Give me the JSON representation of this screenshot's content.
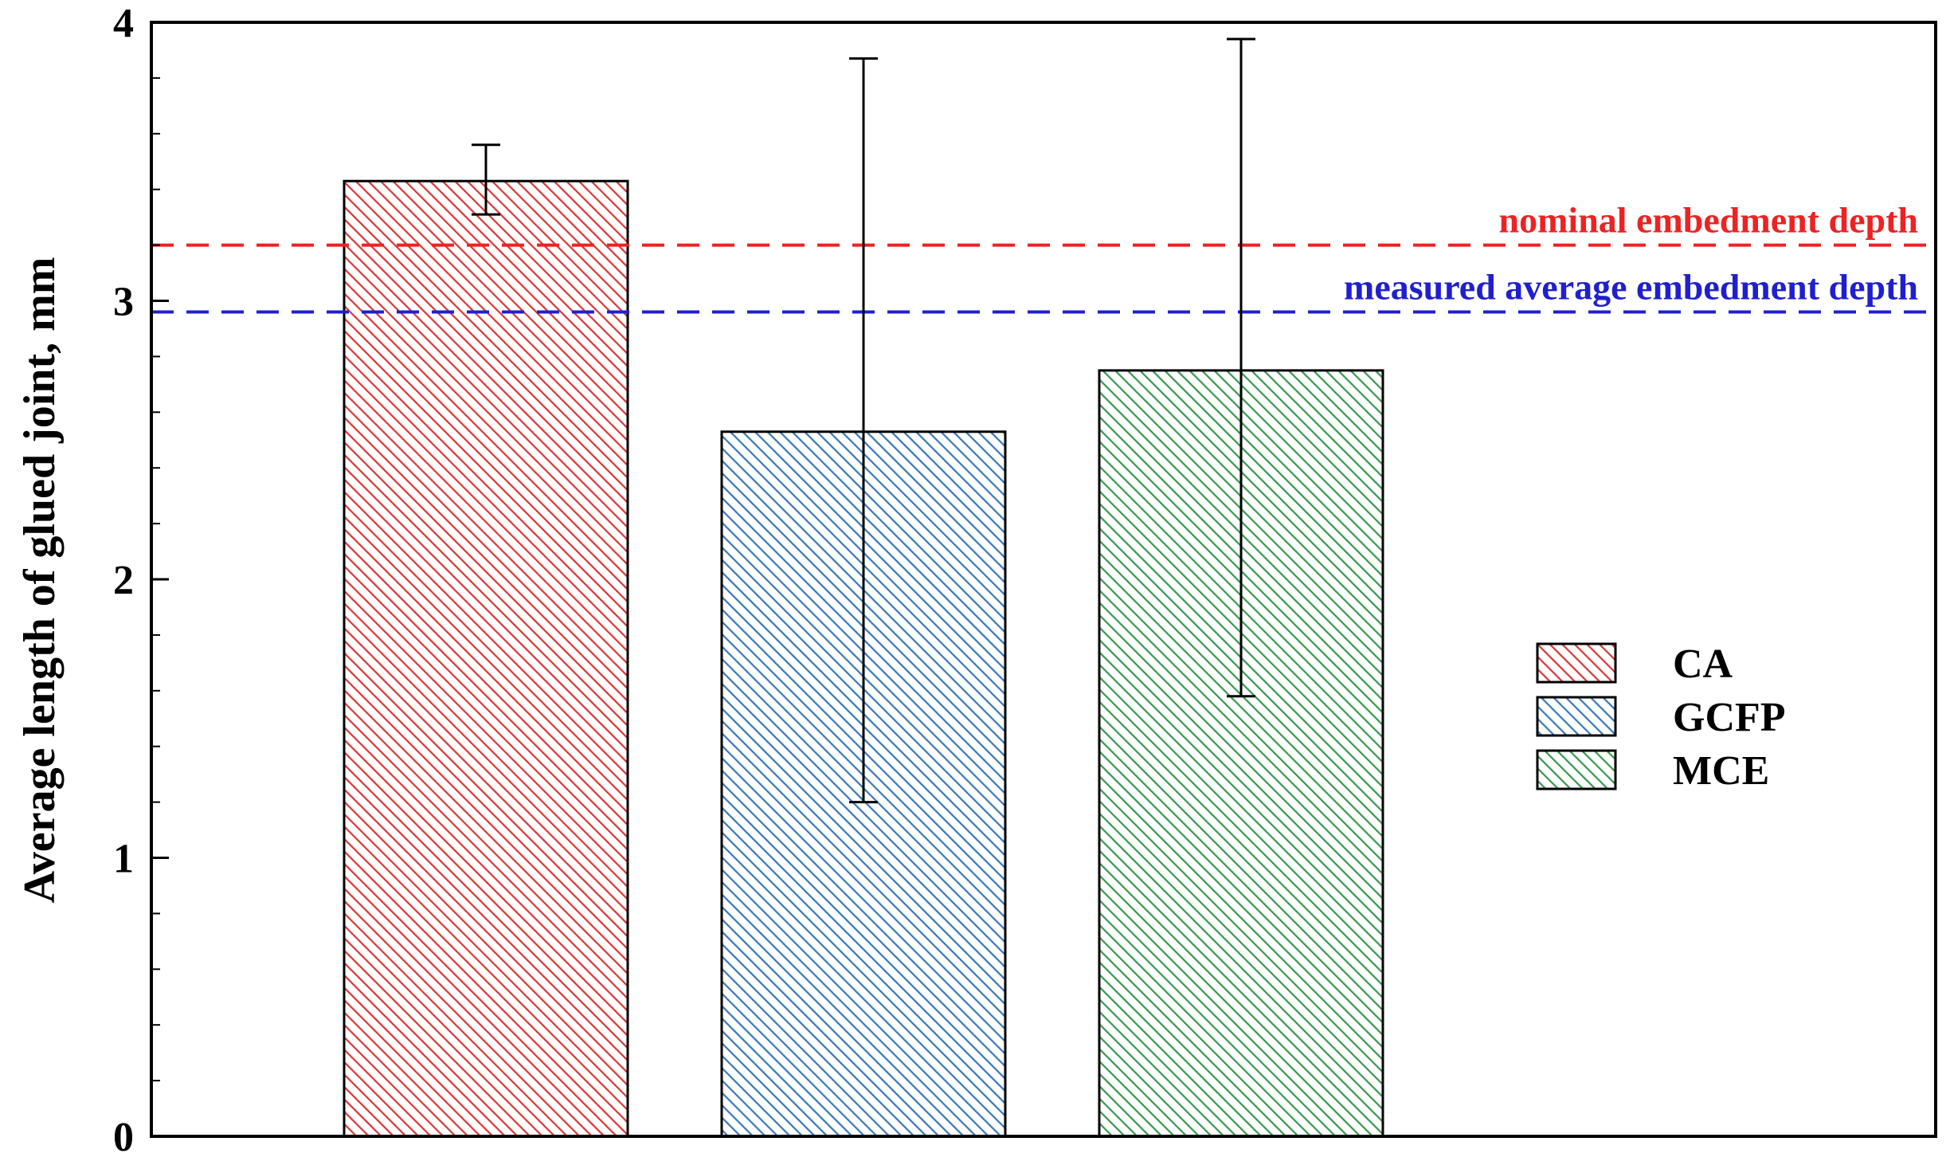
{
  "chart_data": {
    "type": "bar",
    "title": "",
    "xlabel": "",
    "ylabel": "Average length of glued joint, mm",
    "ylim": [
      0,
      4
    ],
    "yticks": [
      0,
      1,
      2,
      3,
      4
    ],
    "categories": [
      "CA",
      "GCFP",
      "MCE"
    ],
    "series": [
      {
        "values": [
          3.43,
          2.53,
          2.75
        ],
        "error_low": [
          3.31,
          1.2,
          1.58
        ],
        "error_high": [
          3.56,
          3.87,
          3.94
        ],
        "colors": [
          "#d93a3a",
          "#3a7bb8",
          "#3a9a50"
        ]
      }
    ],
    "reference_lines": [
      {
        "label": "nominal embedment depth",
        "value": 3.2,
        "color": "#ee2222"
      },
      {
        "label": "measured average embedment depth",
        "value": 2.96,
        "color": "#1f1fd0"
      }
    ],
    "legend": {
      "placement": "right",
      "entries": [
        "CA",
        "GCFP",
        "MCE"
      ]
    },
    "grid": false
  }
}
